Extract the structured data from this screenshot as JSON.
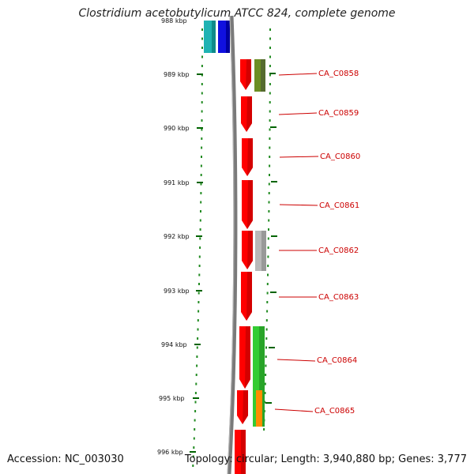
{
  "title": "Clostridium acetobutylicum ATCC 824, complete genome",
  "accession": "Accession: NC_003030",
  "topology": "Topology: circular; Length: 3,940,880 bp; Genes: 3,777",
  "colors": {
    "backbone": "#808080",
    "tick": "#006400",
    "gene_forward": "#ff0000",
    "label": "#cc0000",
    "cyan": "#1fb3b3",
    "blue": "#1010e0",
    "olive": "#6b8e23",
    "gray": "#b0b0b0",
    "green": "#33cc33",
    "orange": "#ff8c00"
  },
  "scale_labels": [
    "988 kbp",
    "989 kbp",
    "990 kbp",
    "991 kbp",
    "992 kbp",
    "993 kbp",
    "994 kbp",
    "995 kbp",
    "996 kbp"
  ],
  "genes": [
    {
      "label": "CA_C0858"
    },
    {
      "label": "CA_C0859"
    },
    {
      "label": "CA_C0860"
    },
    {
      "label": "CA_C0861"
    },
    {
      "label": "CA_C0862"
    },
    {
      "label": "CA_C0863"
    },
    {
      "label": "CA_C0864"
    },
    {
      "label": "CA_C0865"
    }
  ]
}
